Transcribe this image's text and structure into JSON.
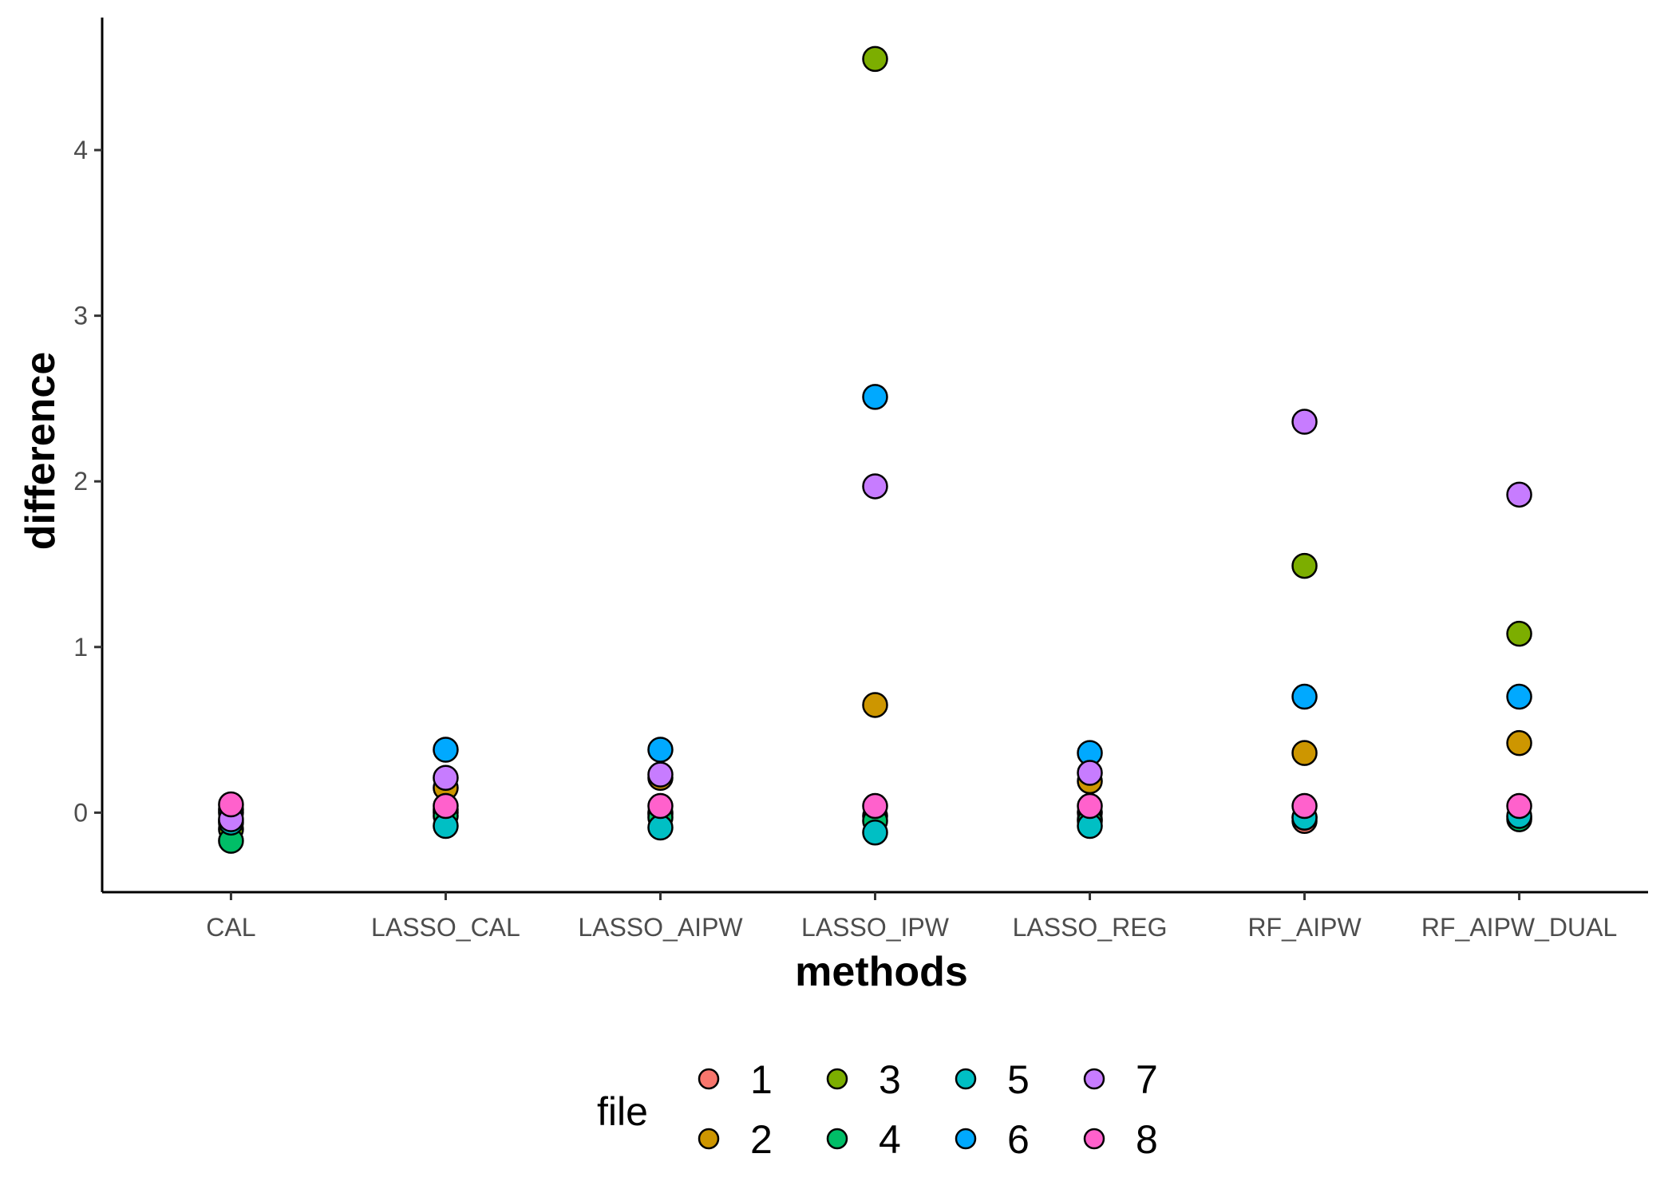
{
  "chart_data": {
    "type": "scatter",
    "xlabel": "methods",
    "ylabel": "difference",
    "categories": [
      "CAL",
      "LASSO_CAL",
      "LASSO_AIPW",
      "LASSO_IPW",
      "LASSO_REG",
      "RF_AIPW",
      "RF_AIPW_DUAL"
    ],
    "ylim": [
      -0.48,
      4.8
    ],
    "y_ticks": [
      0,
      1,
      2,
      3,
      4
    ],
    "y_tick_labels": [
      "0",
      "1",
      "2",
      "3",
      "4"
    ],
    "grid": false,
    "legend": {
      "title": "file",
      "position": "bottom"
    },
    "series": [
      {
        "name": "1",
        "color": "#F8766D",
        "values": [
          -0.05,
          0.0,
          0.0,
          -0.02,
          0.0,
          -0.05,
          -0.03
        ]
      },
      {
        "name": "2",
        "color": "#CD9600",
        "values": [
          0.02,
          0.15,
          0.21,
          0.65,
          0.19,
          0.36,
          0.42
        ]
      },
      {
        "name": "3",
        "color": "#7CAE00",
        "values": [
          -0.1,
          0.02,
          -0.01,
          4.55,
          -0.04,
          1.49,
          1.08
        ]
      },
      {
        "name": "4",
        "color": "#00BE67",
        "values": [
          -0.17,
          -0.02,
          -0.03,
          -0.05,
          -0.05,
          -0.03,
          -0.04
        ]
      },
      {
        "name": "5",
        "color": "#00BFC4",
        "values": [
          -0.06,
          -0.08,
          -0.09,
          -0.12,
          -0.08,
          -0.03,
          -0.02
        ]
      },
      {
        "name": "6",
        "color": "#00A9FF",
        "values": [
          0.0,
          0.38,
          0.38,
          2.51,
          0.36,
          0.7,
          0.7
        ]
      },
      {
        "name": "7",
        "color": "#C77CFF",
        "values": [
          -0.04,
          0.21,
          0.23,
          1.97,
          0.24,
          2.36,
          1.92
        ]
      },
      {
        "name": "8",
        "color": "#FF61CC",
        "values": [
          0.05,
          0.04,
          0.04,
          0.04,
          0.04,
          0.04,
          0.04
        ]
      }
    ]
  }
}
